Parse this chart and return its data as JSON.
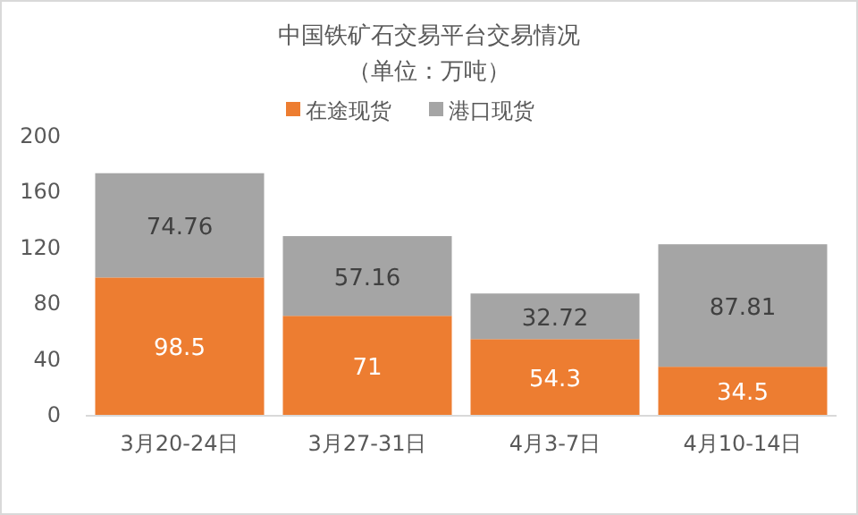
{
  "chart_data": {
    "type": "bar",
    "title": "中国铁矿石交易平台交易情况",
    "subtitle": "（单位：万吨）",
    "stacked": true,
    "data_labels": true,
    "legend": "top",
    "categories": [
      "3月20-24日",
      "3月27-31日",
      "4月3-7日",
      "4月10-14日"
    ],
    "ylim": [
      0,
      200
    ],
    "yticks": [
      0,
      40,
      80,
      120,
      160,
      200
    ],
    "series": [
      {
        "name": "在途现货",
        "color": "#ed7d31",
        "values": [
          98.5,
          71,
          54.3,
          34.5
        ]
      },
      {
        "name": "港口现货",
        "color": "#a5a5a5",
        "values": [
          74.76,
          57.16,
          32.72,
          87.81
        ]
      }
    ]
  }
}
